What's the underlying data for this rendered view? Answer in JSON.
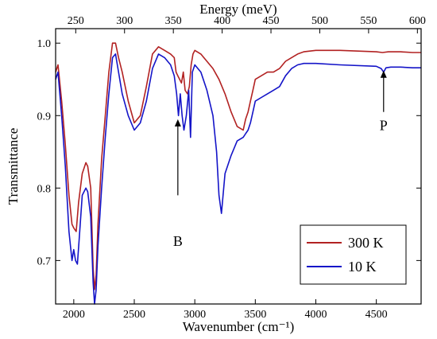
{
  "chart_data": {
    "type": "line",
    "title": "",
    "xlabel": "Wavenumber (cm⁻¹)",
    "ylabel": "Transmittance",
    "top_xlabel": "Energy (meV)",
    "xlim": [
      1850,
      4870
    ],
    "ylim": [
      0.64,
      1.02
    ],
    "top_xlim": [
      229.4,
      603.8
    ],
    "x_ticks": [
      "2000",
      "2500",
      "3000",
      "3500",
      "4000",
      "4500"
    ],
    "x_tick_values": [
      2000,
      2500,
      3000,
      3500,
      4000,
      4500
    ],
    "y_ticks": [
      "0.7",
      "0.8",
      "0.9",
      "1.0"
    ],
    "y_tick_values": [
      0.7,
      0.8,
      0.9,
      1.0
    ],
    "top_ticks": [
      "250",
      "300",
      "350",
      "400",
      "450",
      "500",
      "550",
      "600"
    ],
    "top_tick_values": [
      250,
      300,
      350,
      400,
      450,
      500,
      550,
      600
    ],
    "grid": false,
    "legend_position": "bottom-right",
    "series": [
      {
        "name": "300 K",
        "color": "#b22222",
        "x": [
          1850,
          1870,
          1900,
          1930,
          1960,
          1985,
          2000,
          2020,
          2040,
          2070,
          2100,
          2115,
          2140,
          2160,
          2172,
          2185,
          2200,
          2230,
          2260,
          2290,
          2320,
          2345,
          2370,
          2400,
          2450,
          2500,
          2550,
          2600,
          2650,
          2700,
          2750,
          2800,
          2830,
          2845,
          2860,
          2875,
          2890,
          2905,
          2920,
          2940,
          2955,
          2970,
          2985,
          3000,
          3050,
          3100,
          3150,
          3200,
          3250,
          3300,
          3350,
          3400,
          3420,
          3440,
          3460,
          3480,
          3500,
          3550,
          3600,
          3650,
          3700,
          3750,
          3800,
          3850,
          3900,
          4000,
          4200,
          4500,
          4550,
          4600,
          4700,
          4800,
          4870
        ],
        "y": [
          0.96,
          0.97,
          0.92,
          0.86,
          0.79,
          0.75,
          0.745,
          0.74,
          0.78,
          0.82,
          0.835,
          0.83,
          0.8,
          0.69,
          0.66,
          0.68,
          0.75,
          0.84,
          0.9,
          0.96,
          1.0,
          1.0,
          0.98,
          0.96,
          0.92,
          0.89,
          0.9,
          0.94,
          0.985,
          0.995,
          0.99,
          0.985,
          0.98,
          0.96,
          0.955,
          0.95,
          0.945,
          0.96,
          0.935,
          0.93,
          0.94,
          0.97,
          0.985,
          0.99,
          0.985,
          0.975,
          0.965,
          0.95,
          0.93,
          0.905,
          0.885,
          0.88,
          0.895,
          0.905,
          0.92,
          0.935,
          0.95,
          0.955,
          0.96,
          0.96,
          0.965,
          0.975,
          0.98,
          0.985,
          0.988,
          0.99,
          0.99,
          0.988,
          0.987,
          0.988,
          0.988,
          0.987,
          0.987
        ]
      },
      {
        "name": "10 K",
        "color": "#1414c8",
        "x": [
          1850,
          1870,
          1900,
          1930,
          1960,
          1985,
          2000,
          2015,
          2030,
          2045,
          2070,
          2100,
          2115,
          2140,
          2160,
          2172,
          2185,
          2200,
          2230,
          2260,
          2290,
          2320,
          2345,
          2370,
          2400,
          2450,
          2500,
          2550,
          2600,
          2650,
          2700,
          2750,
          2800,
          2830,
          2850,
          2865,
          2880,
          2895,
          2910,
          2930,
          2950,
          2965,
          2980,
          3000,
          3050,
          3100,
          3150,
          3180,
          3200,
          3220,
          3250,
          3300,
          3350,
          3400,
          3420,
          3440,
          3460,
          3480,
          3500,
          3550,
          3600,
          3650,
          3700,
          3750,
          3800,
          3850,
          3900,
          4000,
          4200,
          4500,
          4540,
          4560,
          4580,
          4620,
          4700,
          4800,
          4870
        ],
        "y": [
          0.95,
          0.96,
          0.9,
          0.83,
          0.74,
          0.7,
          0.715,
          0.7,
          0.695,
          0.73,
          0.79,
          0.8,
          0.795,
          0.76,
          0.67,
          0.64,
          0.66,
          0.72,
          0.8,
          0.87,
          0.93,
          0.98,
          0.985,
          0.96,
          0.93,
          0.9,
          0.88,
          0.89,
          0.92,
          0.965,
          0.985,
          0.98,
          0.97,
          0.955,
          0.93,
          0.9,
          0.93,
          0.9,
          0.88,
          0.9,
          0.935,
          0.87,
          0.96,
          0.97,
          0.96,
          0.935,
          0.9,
          0.85,
          0.79,
          0.765,
          0.82,
          0.845,
          0.865,
          0.87,
          0.875,
          0.88,
          0.89,
          0.905,
          0.92,
          0.925,
          0.93,
          0.935,
          0.94,
          0.955,
          0.965,
          0.97,
          0.972,
          0.972,
          0.97,
          0.968,
          0.965,
          0.96,
          0.966,
          0.967,
          0.967,
          0.966,
          0.966
        ]
      }
    ],
    "annotations": [
      {
        "text": "B",
        "x": 2860,
        "label_y": 0.72,
        "arrow_from": 0.79,
        "arrow_to": 0.895
      },
      {
        "text": "P",
        "x": 4560,
        "label_y": 0.88,
        "arrow_from": 0.905,
        "arrow_to": 0.962
      }
    ]
  }
}
